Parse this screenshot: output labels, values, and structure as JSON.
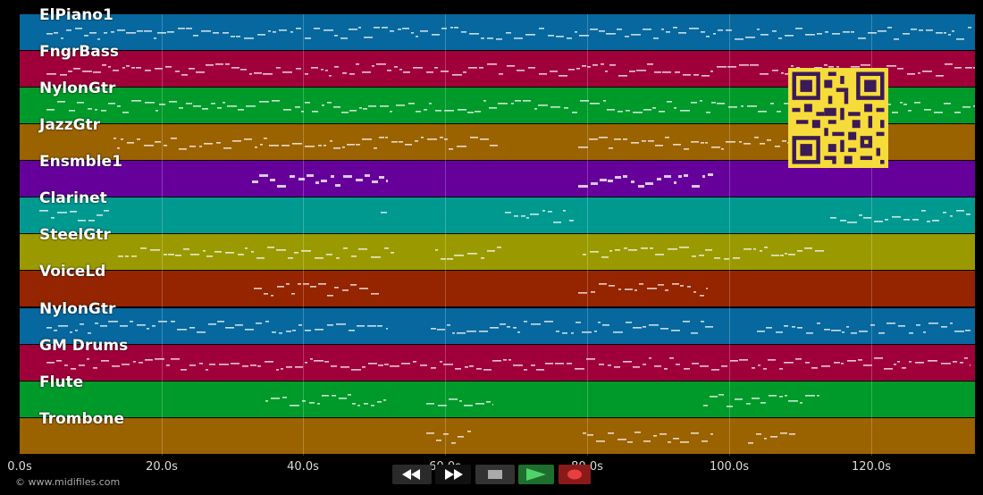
{
  "tracks": [
    {
      "name": "ElPiano1",
      "color": "#06689e"
    },
    {
      "name": "FngrBass",
      "color": "#a0003a"
    },
    {
      "name": "NylonGtr",
      "color": "#009a2a"
    },
    {
      "name": "JazzGtr",
      "color": "#9b6200"
    },
    {
      "name": "Ensmble1",
      "color": "#65009a"
    },
    {
      "name": "Clarinet",
      "color": "#00998f"
    },
    {
      "name": "SteelGtr",
      "color": "#9a9a00"
    },
    {
      "name": "VoiceLd",
      "color": "#952400"
    },
    {
      "name": "NylonGtr",
      "color": "#06689e"
    },
    {
      "name": "GM Drums",
      "color": "#a0003a"
    },
    {
      "name": "Flute",
      "color": "#009a2a"
    },
    {
      "name": "Trombone",
      "color": "#9b6200"
    }
  ],
  "timeline": {
    "ticks": [
      "0.0s",
      "20.0s",
      "40.0s",
      "60.0s",
      "80.0s",
      "100.0s",
      "120.0s"
    ]
  },
  "copyright": "© www.midifiles.com",
  "controls": {
    "rewind_icon": "rewind-icon",
    "fast_forward_icon": "fast-forward-icon",
    "stop_icon": "stop-icon",
    "play_icon": "play-icon",
    "record_icon": "record-icon"
  },
  "qr_icon": "qr-code-icon"
}
